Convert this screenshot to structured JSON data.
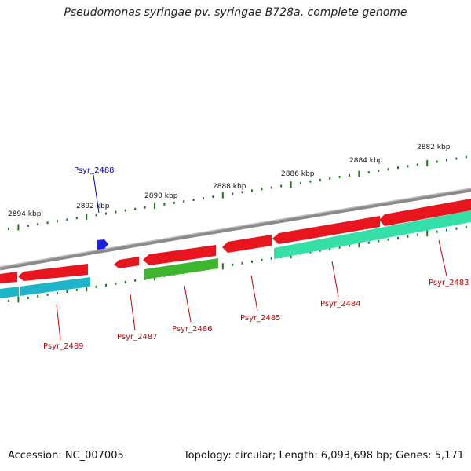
{
  "title": "Pseudomonas syringae pv. syringae B728a, complete genome",
  "footer": {
    "accession": "Accession: NC_007005",
    "summary": "Topology: circular; Length: 6,093,698 bp; Genes: 5,171"
  },
  "colors": {
    "backbone": "#8a8a8a",
    "gene_red": "#e8141e",
    "gene_green": "#3db52e",
    "gene_teal": "#34e0a8",
    "gene_cyan": "#1fb5c8",
    "gene_blue": "#1a22e0",
    "tick": "#1a7a1a",
    "label_red": "#cc0000",
    "label_blue": "#0000cc"
  },
  "kbp_labels": [
    "2882 kbp",
    "2884 kbp",
    "2886 kbp",
    "2888 kbp",
    "2890 kbp",
    "2892 kbp",
    "2894 kbp"
  ],
  "gene_labels": [
    {
      "name": "Psyr_2483",
      "color": "red"
    },
    {
      "name": "Psyr_2484",
      "color": "red"
    },
    {
      "name": "Psyr_2485",
      "color": "red"
    },
    {
      "name": "Psyr_2486",
      "color": "red"
    },
    {
      "name": "Psyr_2487",
      "color": "red"
    },
    {
      "name": "Psyr_2488",
      "color": "blue"
    },
    {
      "name": "Psyr_2489",
      "color": "red"
    }
  ]
}
